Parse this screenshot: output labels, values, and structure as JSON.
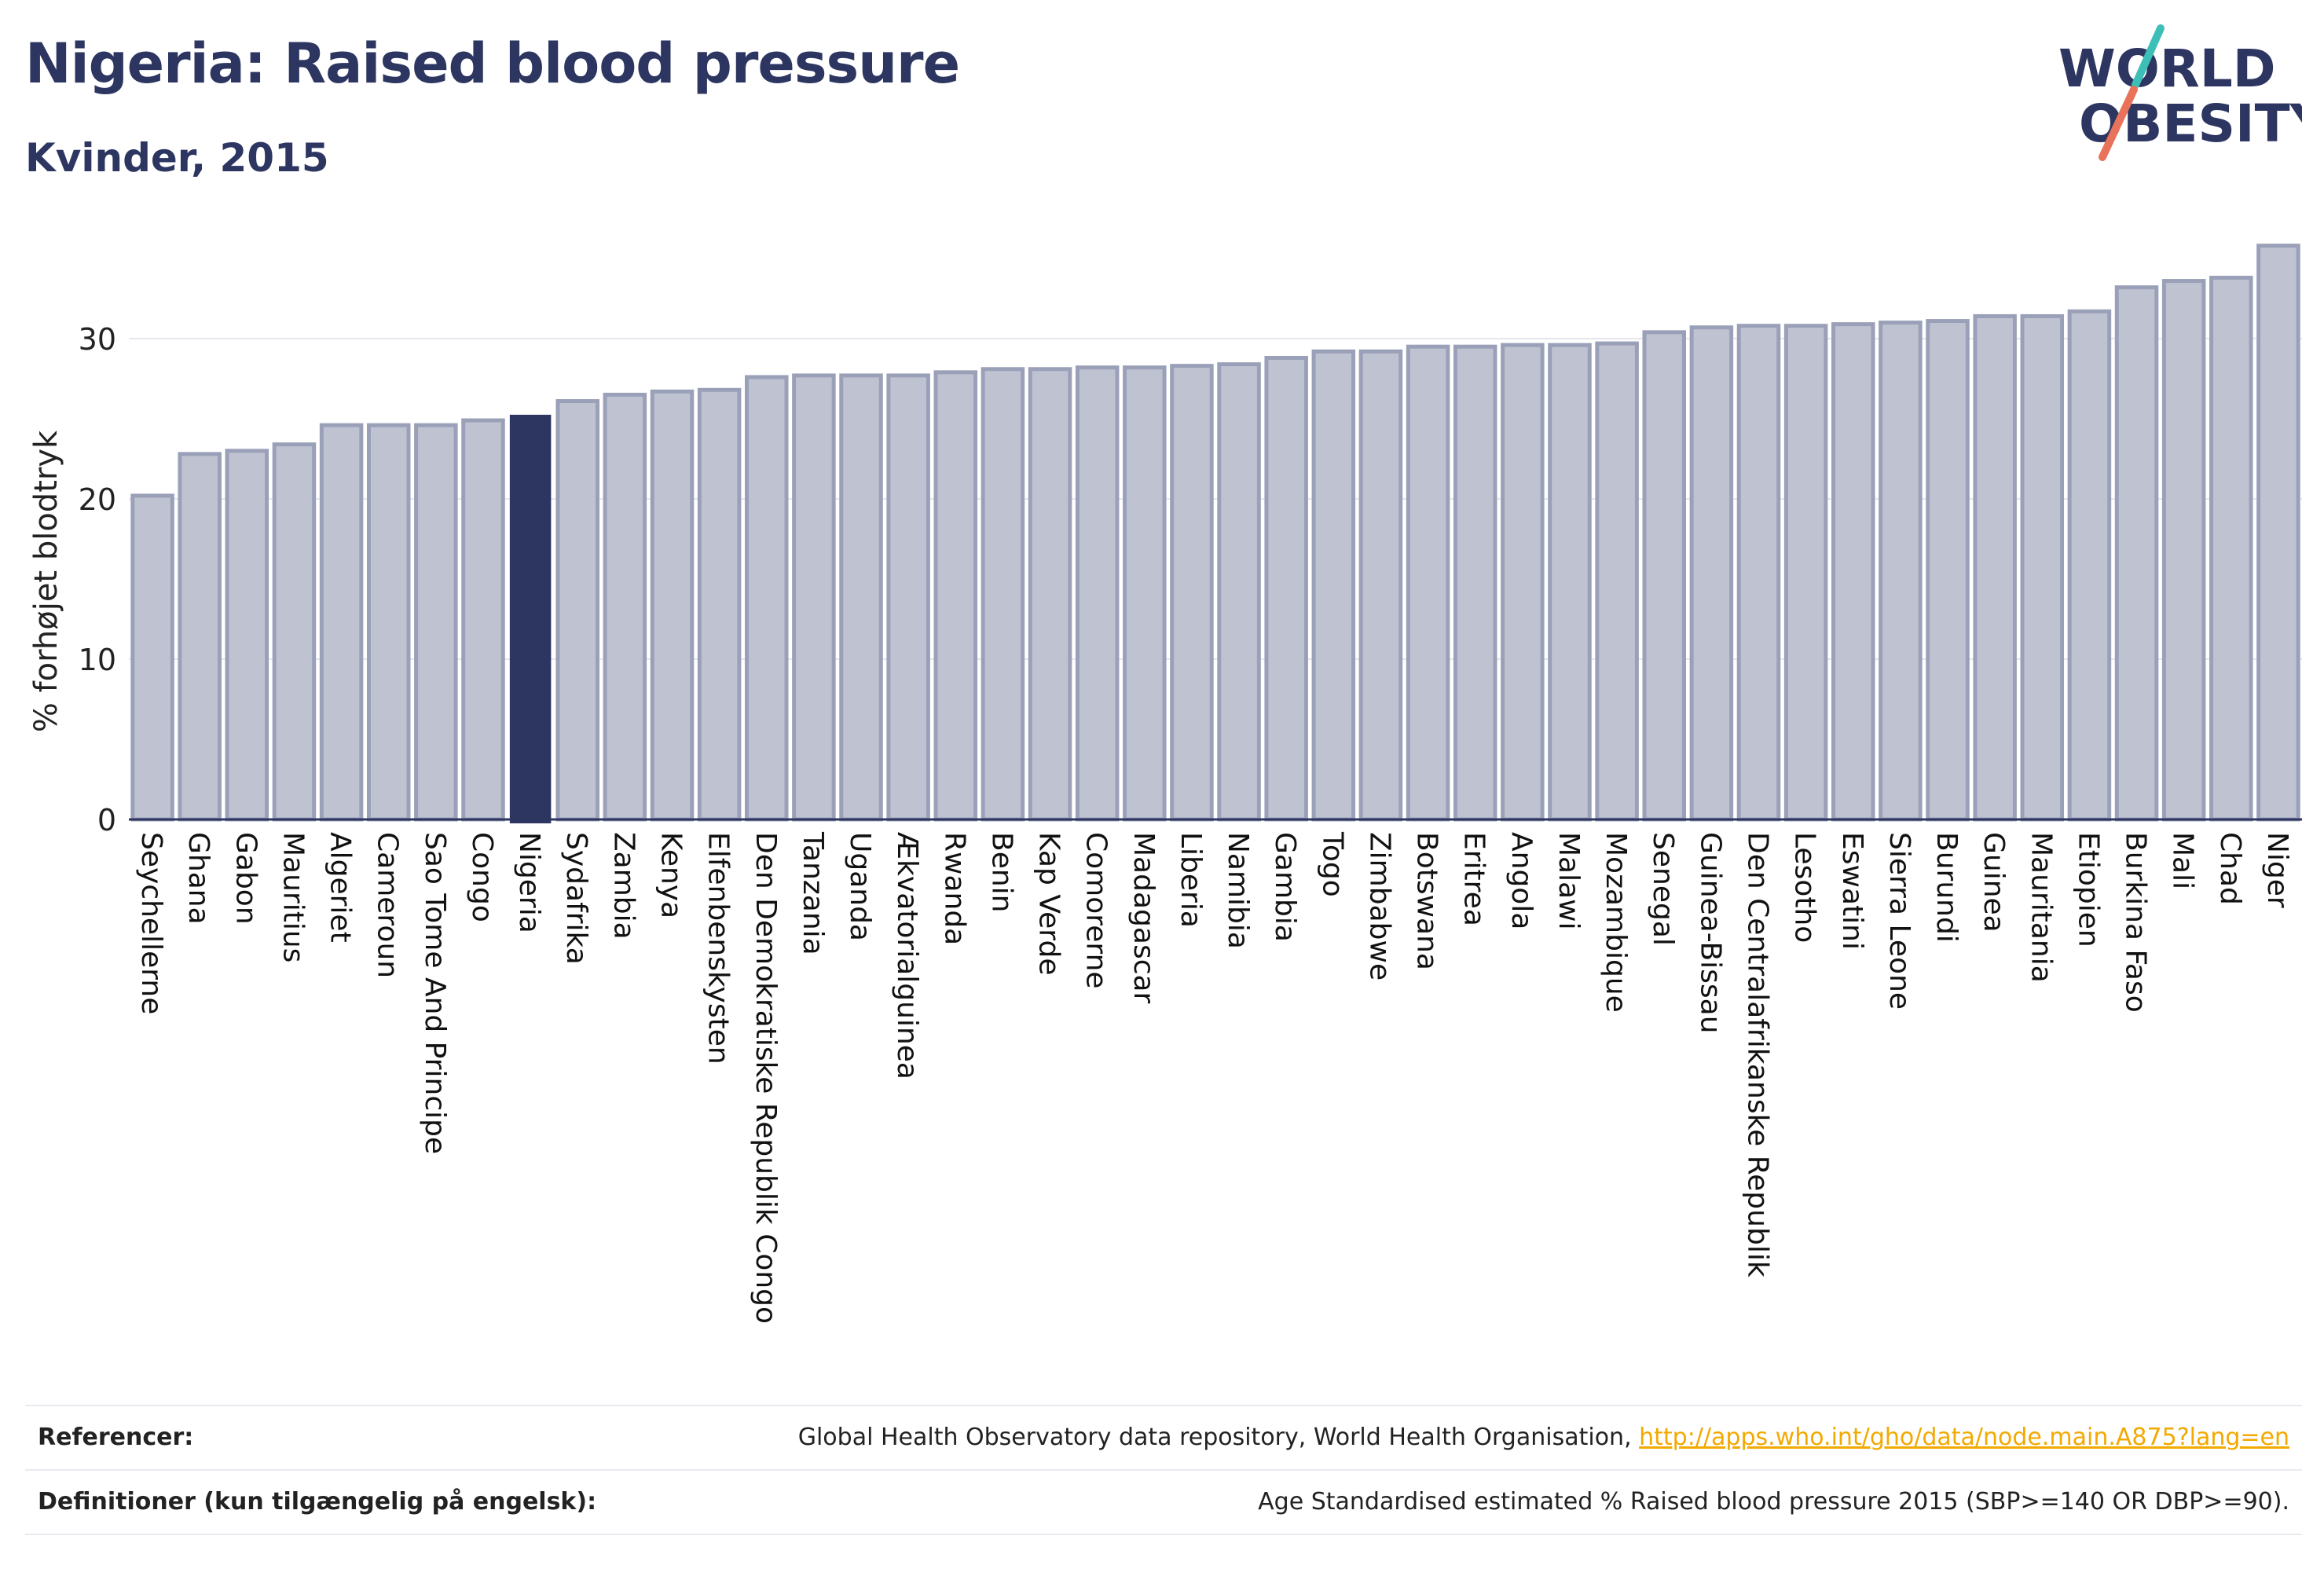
{
  "header": {
    "title": "Nigeria: Raised blood pressure",
    "subtitle": "Kvinder, 2015"
  },
  "logo": {
    "line1": "WORLD",
    "line2": "OBESITY",
    "colors": {
      "text": "#2d3561",
      "slash1": "#3dbfb8",
      "slash2": "#e8735a"
    }
  },
  "colors": {
    "bar": "#bfc3d1",
    "bar_stroke": "#9aa0b8",
    "highlight": "#2d3561",
    "axis": "#2d3561",
    "grid": "#e6e6ee"
  },
  "chart_data": {
    "type": "bar",
    "ylabel": "% forhøjet blodtryk",
    "ylim": [
      0,
      36
    ],
    "yticks": [
      0,
      10,
      20,
      30
    ],
    "highlight": "Nigeria",
    "categories": [
      "Seychellerne",
      "Ghana",
      "Gabon",
      "Mauritius",
      "Algeriet",
      "Cameroun",
      "Sao Tome And Principe",
      "Congo",
      "Nigeria",
      "Sydafrika",
      "Zambia",
      "Kenya",
      "Elfenbenskysten",
      "Den Demokratiske Republik Congo",
      "Tanzania",
      "Uganda",
      "Ækvatorialguinea",
      "Rwanda",
      "Benin",
      "Kap Verde",
      "Comorerne",
      "Madagascar",
      "Liberia",
      "Namibia",
      "Gambia",
      "Togo",
      "Zimbabwe",
      "Botswana",
      "Eritrea",
      "Angola",
      "Malawi",
      "Mozambique",
      "Senegal",
      "Guinea-Bissau",
      "Den Centralafrikanske Republik",
      "Lesotho",
      "Eswatini",
      "Sierra Leone",
      "Burundi",
      "Guinea",
      "Mauritania",
      "Etiopien",
      "Burkina Faso",
      "Mali",
      "Chad",
      "Niger"
    ],
    "values": [
      20.2,
      22.8,
      23.0,
      23.4,
      24.6,
      24.6,
      24.6,
      24.9,
      25.2,
      26.1,
      26.5,
      26.7,
      26.8,
      27.6,
      27.7,
      27.7,
      27.7,
      27.9,
      28.1,
      28.1,
      28.2,
      28.2,
      28.3,
      28.4,
      28.8,
      29.2,
      29.2,
      29.5,
      29.5,
      29.6,
      29.6,
      29.7,
      30.4,
      30.7,
      30.8,
      30.8,
      30.9,
      31.0,
      31.1,
      31.4,
      31.4,
      31.7,
      33.2,
      33.6,
      33.8,
      35.8
    ]
  },
  "footer": {
    "ref_label": "Referencer:",
    "ref_text": "Global Health Observatory data repository, World Health Organisation, ",
    "ref_link": "http://apps.who.int/gho/data/node.main.A875?lang=en",
    "def_label": "Definitioner (kun tilgængelig på engelsk):",
    "def_text": "Age Standardised estimated % Raised blood pressure 2015 (SBP>=140 OR DBP>=90)."
  }
}
